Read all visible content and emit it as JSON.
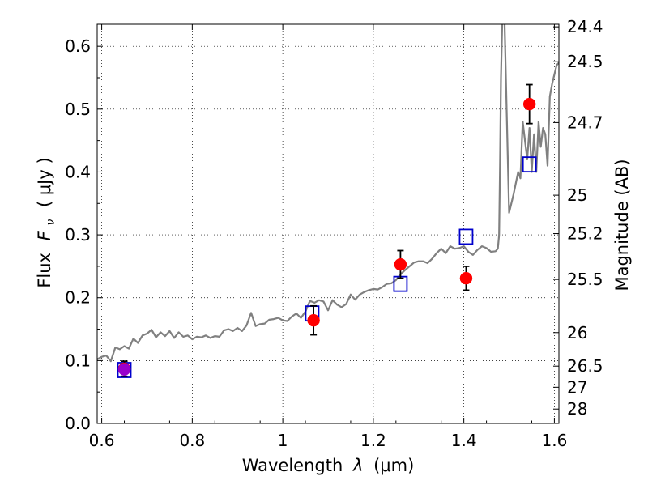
{
  "chart_data": {
    "type": "scatter",
    "xlabel": "Wavelength",
    "xlabel_symbol": "λ",
    "xlabel_unit": "(μm)",
    "ylabel": "Flux",
    "ylabel_symbol": "F",
    "ylabel_sub": "ν",
    "ylabel_unit": "( μJy )",
    "y2label": "Magnitude (AB)",
    "xlim": [
      0.59,
      1.61
    ],
    "ylim": [
      0.0,
      0.635
    ],
    "grid": true,
    "x_ticks": [
      {
        "value": 0.6,
        "label": "0.6"
      },
      {
        "value": 0.8,
        "label": "0.8"
      },
      {
        "value": 1.0,
        "label": "1"
      },
      {
        "value": 1.2,
        "label": "1.2"
      },
      {
        "value": 1.4,
        "label": "1.4"
      },
      {
        "value": 1.6,
        "label": "1.6"
      }
    ],
    "y_ticks": [
      {
        "value": 0.0,
        "label": "0.0"
      },
      {
        "value": 0.1,
        "label": "0.1"
      },
      {
        "value": 0.2,
        "label": "0.2"
      },
      {
        "value": 0.3,
        "label": "0.3"
      },
      {
        "value": 0.4,
        "label": "0.4"
      },
      {
        "value": 0.5,
        "label": "0.5"
      },
      {
        "value": 0.6,
        "label": "0.6"
      }
    ],
    "y2_ticks": [
      {
        "value": 24.4,
        "label": "24.4"
      },
      {
        "value": 24.5,
        "label": "24.5"
      },
      {
        "value": 24.7,
        "label": "24.7"
      },
      {
        "value": 25.0,
        "label": "25"
      },
      {
        "value": 25.2,
        "label": "25.2"
      },
      {
        "value": 25.5,
        "label": "25.5"
      },
      {
        "value": 26.0,
        "label": "26"
      },
      {
        "value": 26.5,
        "label": "26.5"
      },
      {
        "value": 27.0,
        "label": "27"
      },
      {
        "value": 28.0,
        "label": "28"
      }
    ],
    "series": [
      {
        "type": "line",
        "color": "#808080",
        "x": [
          0.59,
          0.6,
          0.61,
          0.62,
          0.63,
          0.64,
          0.65,
          0.66,
          0.67,
          0.68,
          0.69,
          0.7,
          0.71,
          0.72,
          0.73,
          0.74,
          0.75,
          0.76,
          0.77,
          0.78,
          0.79,
          0.8,
          0.81,
          0.82,
          0.83,
          0.84,
          0.85,
          0.86,
          0.87,
          0.88,
          0.89,
          0.9,
          0.91,
          0.92,
          0.93,
          0.94,
          0.95,
          0.96,
          0.97,
          0.98,
          0.99,
          1.0,
          1.01,
          1.02,
          1.03,
          1.04,
          1.05,
          1.06,
          1.07,
          1.08,
          1.09,
          1.1,
          1.11,
          1.12,
          1.13,
          1.14,
          1.15,
          1.16,
          1.17,
          1.18,
          1.19,
          1.2,
          1.21,
          1.22,
          1.23,
          1.24,
          1.25,
          1.26,
          1.27,
          1.28,
          1.29,
          1.3,
          1.31,
          1.32,
          1.33,
          1.34,
          1.35,
          1.36,
          1.37,
          1.38,
          1.39,
          1.4,
          1.41,
          1.42,
          1.43,
          1.44,
          1.45,
          1.46,
          1.47,
          1.475,
          1.478,
          1.48,
          1.482,
          1.485,
          1.49,
          1.5,
          1.51,
          1.52,
          1.525,
          1.53,
          1.54,
          1.545,
          1.55,
          1.555,
          1.56,
          1.565,
          1.57,
          1.575,
          1.58,
          1.585,
          1.59,
          1.595,
          1.6,
          1.605,
          1.61
        ],
        "y": [
          0.102,
          0.106,
          0.108,
          0.099,
          0.121,
          0.118,
          0.123,
          0.119,
          0.135,
          0.128,
          0.14,
          0.143,
          0.149,
          0.137,
          0.145,
          0.139,
          0.147,
          0.136,
          0.145,
          0.138,
          0.14,
          0.134,
          0.138,
          0.137,
          0.14,
          0.136,
          0.139,
          0.138,
          0.148,
          0.15,
          0.147,
          0.152,
          0.147,
          0.156,
          0.176,
          0.155,
          0.158,
          0.159,
          0.165,
          0.166,
          0.168,
          0.164,
          0.163,
          0.17,
          0.175,
          0.168,
          0.178,
          0.195,
          0.192,
          0.196,
          0.194,
          0.18,
          0.196,
          0.189,
          0.185,
          0.19,
          0.205,
          0.197,
          0.205,
          0.209,
          0.212,
          0.214,
          0.213,
          0.217,
          0.222,
          0.223,
          0.228,
          0.237,
          0.244,
          0.25,
          0.256,
          0.258,
          0.258,
          0.255,
          0.262,
          0.271,
          0.278,
          0.271,
          0.282,
          0.278,
          0.279,
          0.282,
          0.273,
          0.268,
          0.276,
          0.282,
          0.279,
          0.273,
          0.274,
          0.278,
          0.3,
          0.42,
          0.55,
          0.64,
          0.64,
          0.335,
          0.365,
          0.4,
          0.39,
          0.48,
          0.42,
          0.47,
          0.4,
          0.46,
          0.4,
          0.48,
          0.44,
          0.47,
          0.46,
          0.41,
          0.52,
          0.54,
          0.555,
          0.57,
          0.574
        ]
      },
      {
        "type": "scatter",
        "marker": "square",
        "color": "#0000cc",
        "points": [
          {
            "x": 0.65,
            "y": 0.085
          },
          {
            "x": 1.065,
            "y": 0.175
          },
          {
            "x": 1.26,
            "y": 0.222
          },
          {
            "x": 1.405,
            "y": 0.297
          },
          {
            "x": 1.545,
            "y": 0.412
          }
        ]
      },
      {
        "type": "scatter",
        "marker": "circle",
        "color": "#ff0000",
        "points": [
          {
            "x": 0.65,
            "y": 0.087,
            "err": 0.012
          },
          {
            "x": 1.068,
            "y": 0.164,
            "err": 0.023
          },
          {
            "x": 1.26,
            "y": 0.253,
            "err": 0.022
          },
          {
            "x": 1.405,
            "y": 0.231,
            "err": 0.019
          },
          {
            "x": 1.545,
            "y": 0.508,
            "err": 0.031
          }
        ]
      },
      {
        "type": "scatter",
        "marker": "circle",
        "color": "#9900cc",
        "points": [
          {
            "x": 0.65,
            "y": 0.086
          }
        ]
      }
    ]
  }
}
